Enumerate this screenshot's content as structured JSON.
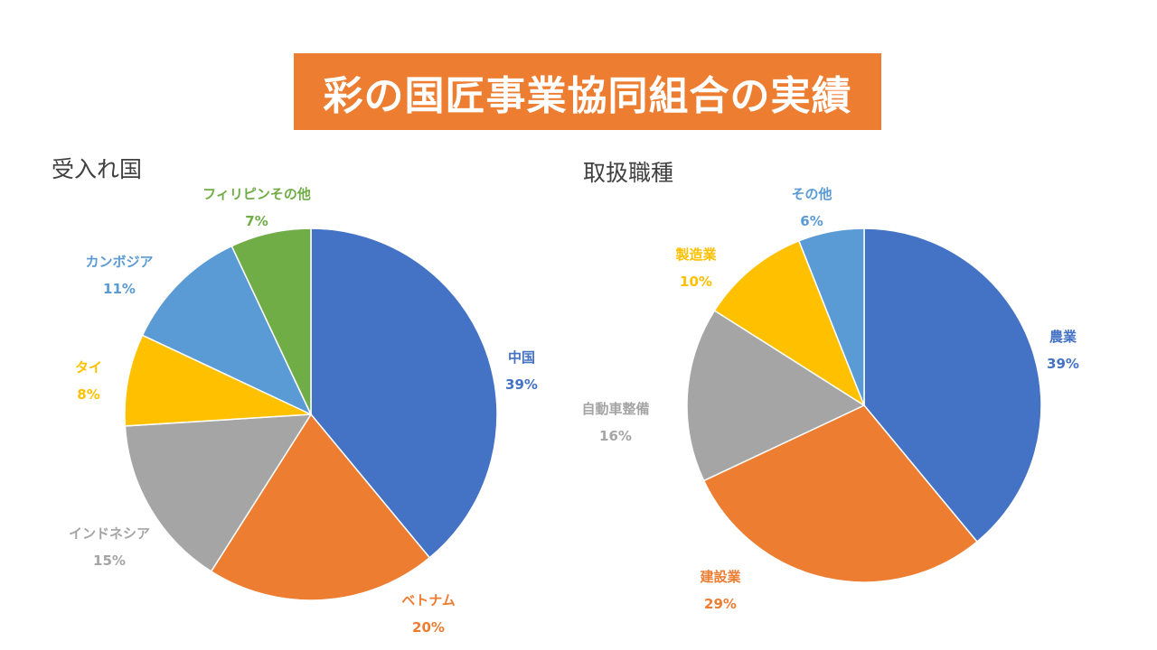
{
  "slide": {
    "title": "彩の国匠事業協同組合の実績"
  },
  "chart_data": [
    {
      "type": "pie",
      "title": "受入れ国",
      "slices": [
        {
          "label": "中国",
          "percent_label": "39%",
          "value": 39,
          "color": "#4472c4"
        },
        {
          "label": "ベトナム",
          "percent_label": "20%",
          "value": 20,
          "color": "#ed7d31"
        },
        {
          "label": "インドネシア",
          "percent_label": "15%",
          "value": 15,
          "color": "#a5a5a5"
        },
        {
          "label": "タイ",
          "percent_label": "8%",
          "value": 8,
          "color": "#ffc000"
        },
        {
          "label": "カンボジア",
          "percent_label": "11%",
          "value": 11,
          "color": "#5b9bd5"
        },
        {
          "label": "フィリピンその他",
          "percent_label": "7%",
          "value": 7,
          "color": "#70ad47"
        }
      ]
    },
    {
      "type": "pie",
      "title": "取扱職種",
      "slices": [
        {
          "label": "農業",
          "percent_label": "39%",
          "value": 39,
          "color": "#4472c4"
        },
        {
          "label": "建設業",
          "percent_label": "29%",
          "value": 29,
          "color": "#ed7d31"
        },
        {
          "label": "自動車整備",
          "percent_label": "16%",
          "value": 16,
          "color": "#a5a5a5"
        },
        {
          "label": "製造業",
          "percent_label": "10%",
          "value": 10,
          "color": "#ffc000"
        },
        {
          "label": "その他",
          "percent_label": "6%",
          "value": 6,
          "color": "#5b9bd5"
        }
      ]
    }
  ]
}
